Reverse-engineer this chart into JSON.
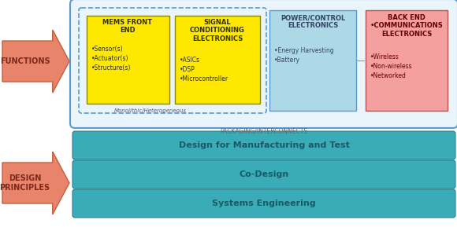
{
  "bg_color": "#ffffff",
  "arrow_color": "#E8846A",
  "arrow_edge_color": "#C06040",
  "arrow_text_color": "#7A2A1A",
  "outer_box_color": "#5B9BD5",
  "outer_box_fill": "#EAF4FB",
  "dashed_box_color": "#5B9BD5",
  "yellow_box_color": "#FFE800",
  "yellow_box_edge": "#888800",
  "blue_box_color": "#ADD8E6",
  "blue_box_edge": "#5B9BD5",
  "pink_box_color": "#F4A0A0",
  "pink_box_edge": "#C05050",
  "teal_bar_color": "#3AACB8",
  "teal_bar_edge": "#2A8090",
  "teal_text_color": "#1A5A64",
  "packaging_label": "PACKAGING/INTERCONNECTS",
  "monolithic_label": "Monolithic/Heterogeneous",
  "mems_title": "MEMS FRONT\nEND",
  "mems_bullets": "•Sensor(s)\n•Actuator(s)\n•Structure(s)",
  "signal_title": "SIGNAL\nCONDITIONING\nELECTRONICS",
  "signal_bullets": "•ASICs\n•DSP\n•Microcontroller",
  "power_title": "POWER/CONTROL\nELECTRONICS",
  "power_bullets": "•Energy Harvesting\n•Battery",
  "backend_title": "BACK END\n•COMMUNICATIONS\nELECTRONICS",
  "backend_bullets": "•Wireless\n•Non-wireless\n•Networked",
  "bar1_text": "Design for Manufacturing and Test",
  "bar2_text": "Co-Design",
  "bar3_text": "Systems Engineering",
  "functions_text": "FUNCTIONS",
  "design_text": "DESIGN\nPRINCIPLES"
}
